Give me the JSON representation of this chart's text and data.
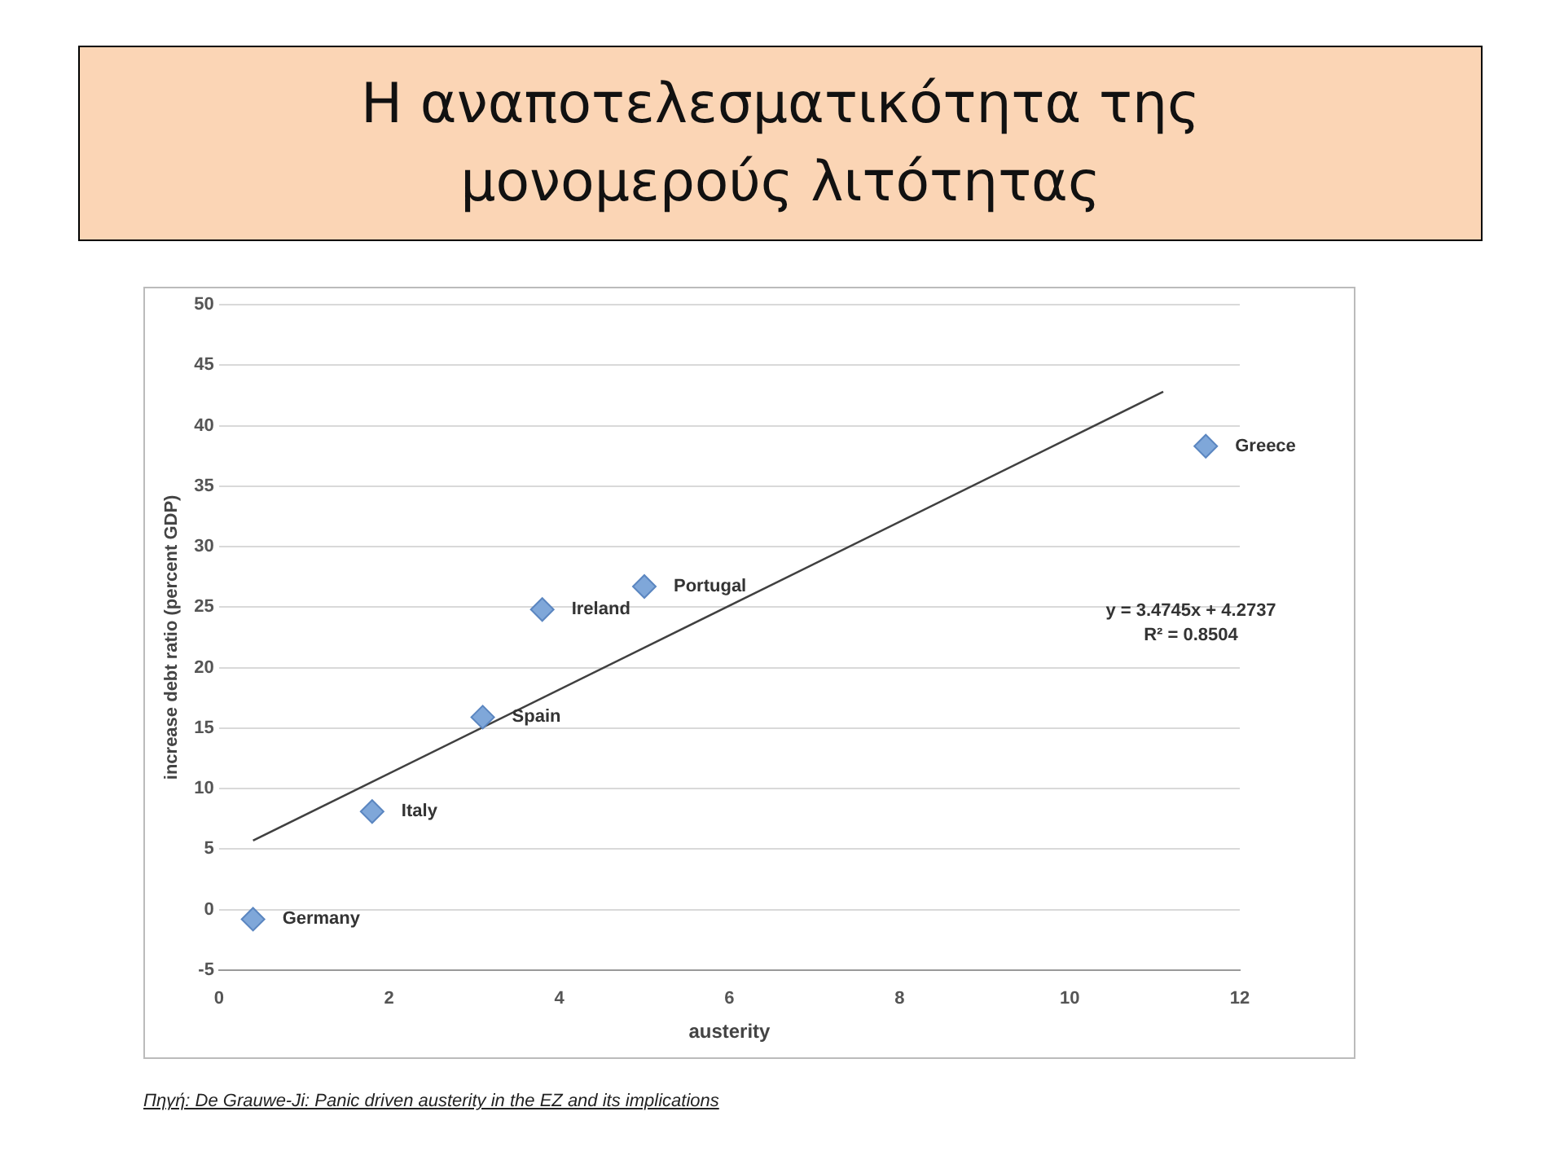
{
  "chart_data": {
    "type": "scatter",
    "title": "Η αναποτελεσματικότητα της μονομερούς λιτότητας",
    "xlabel": "austerity",
    "ylabel": "increase debt ratio (percent GDP)",
    "series": [
      {
        "color": "#7fa7d9",
        "x": [
          0.4,
          1.8,
          3.1,
          3.8,
          5.0,
          11.6
        ],
        "values": [
          -0.8,
          8.1,
          15.9,
          24.8,
          26.7,
          38.3
        ],
        "marker": "diamond"
      },
      {
        "type": "line",
        "color": "#404040",
        "x": [
          0.4,
          11.1
        ],
        "values": [
          5.7,
          42.8
        ],
        "marker": "none"
      }
    ],
    "annotations": [
      {
        "text": "Germany",
        "x": 0.4,
        "y": -0.8
      },
      {
        "text": "Italy",
        "x": 1.8,
        "y": 8.1
      },
      {
        "text": "Spain",
        "x": 3.1,
        "y": 15.9
      },
      {
        "text": "Ireland",
        "x": 3.8,
        "y": 24.8
      },
      {
        "text": "Portugal",
        "x": 5.0,
        "y": 26.7
      },
      {
        "text": "Greece",
        "x": 11.6,
        "y": 38.3
      },
      "y = 3.4745x + 4.2737",
      "R² = 0.8504",
      "Πηγή: De Grauwe-Ji: Panic driven austerity in the EZ and its implications"
    ],
    "xlim": [
      0,
      12
    ],
    "xticks": [
      0,
      2,
      4,
      6,
      8,
      10,
      12
    ],
    "ylim": [
      -5,
      50
    ],
    "yticks": [
      -5,
      0,
      5,
      10,
      15,
      20,
      25,
      30,
      35,
      40,
      45,
      50
    ],
    "grid": "y",
    "legend": false
  }
}
